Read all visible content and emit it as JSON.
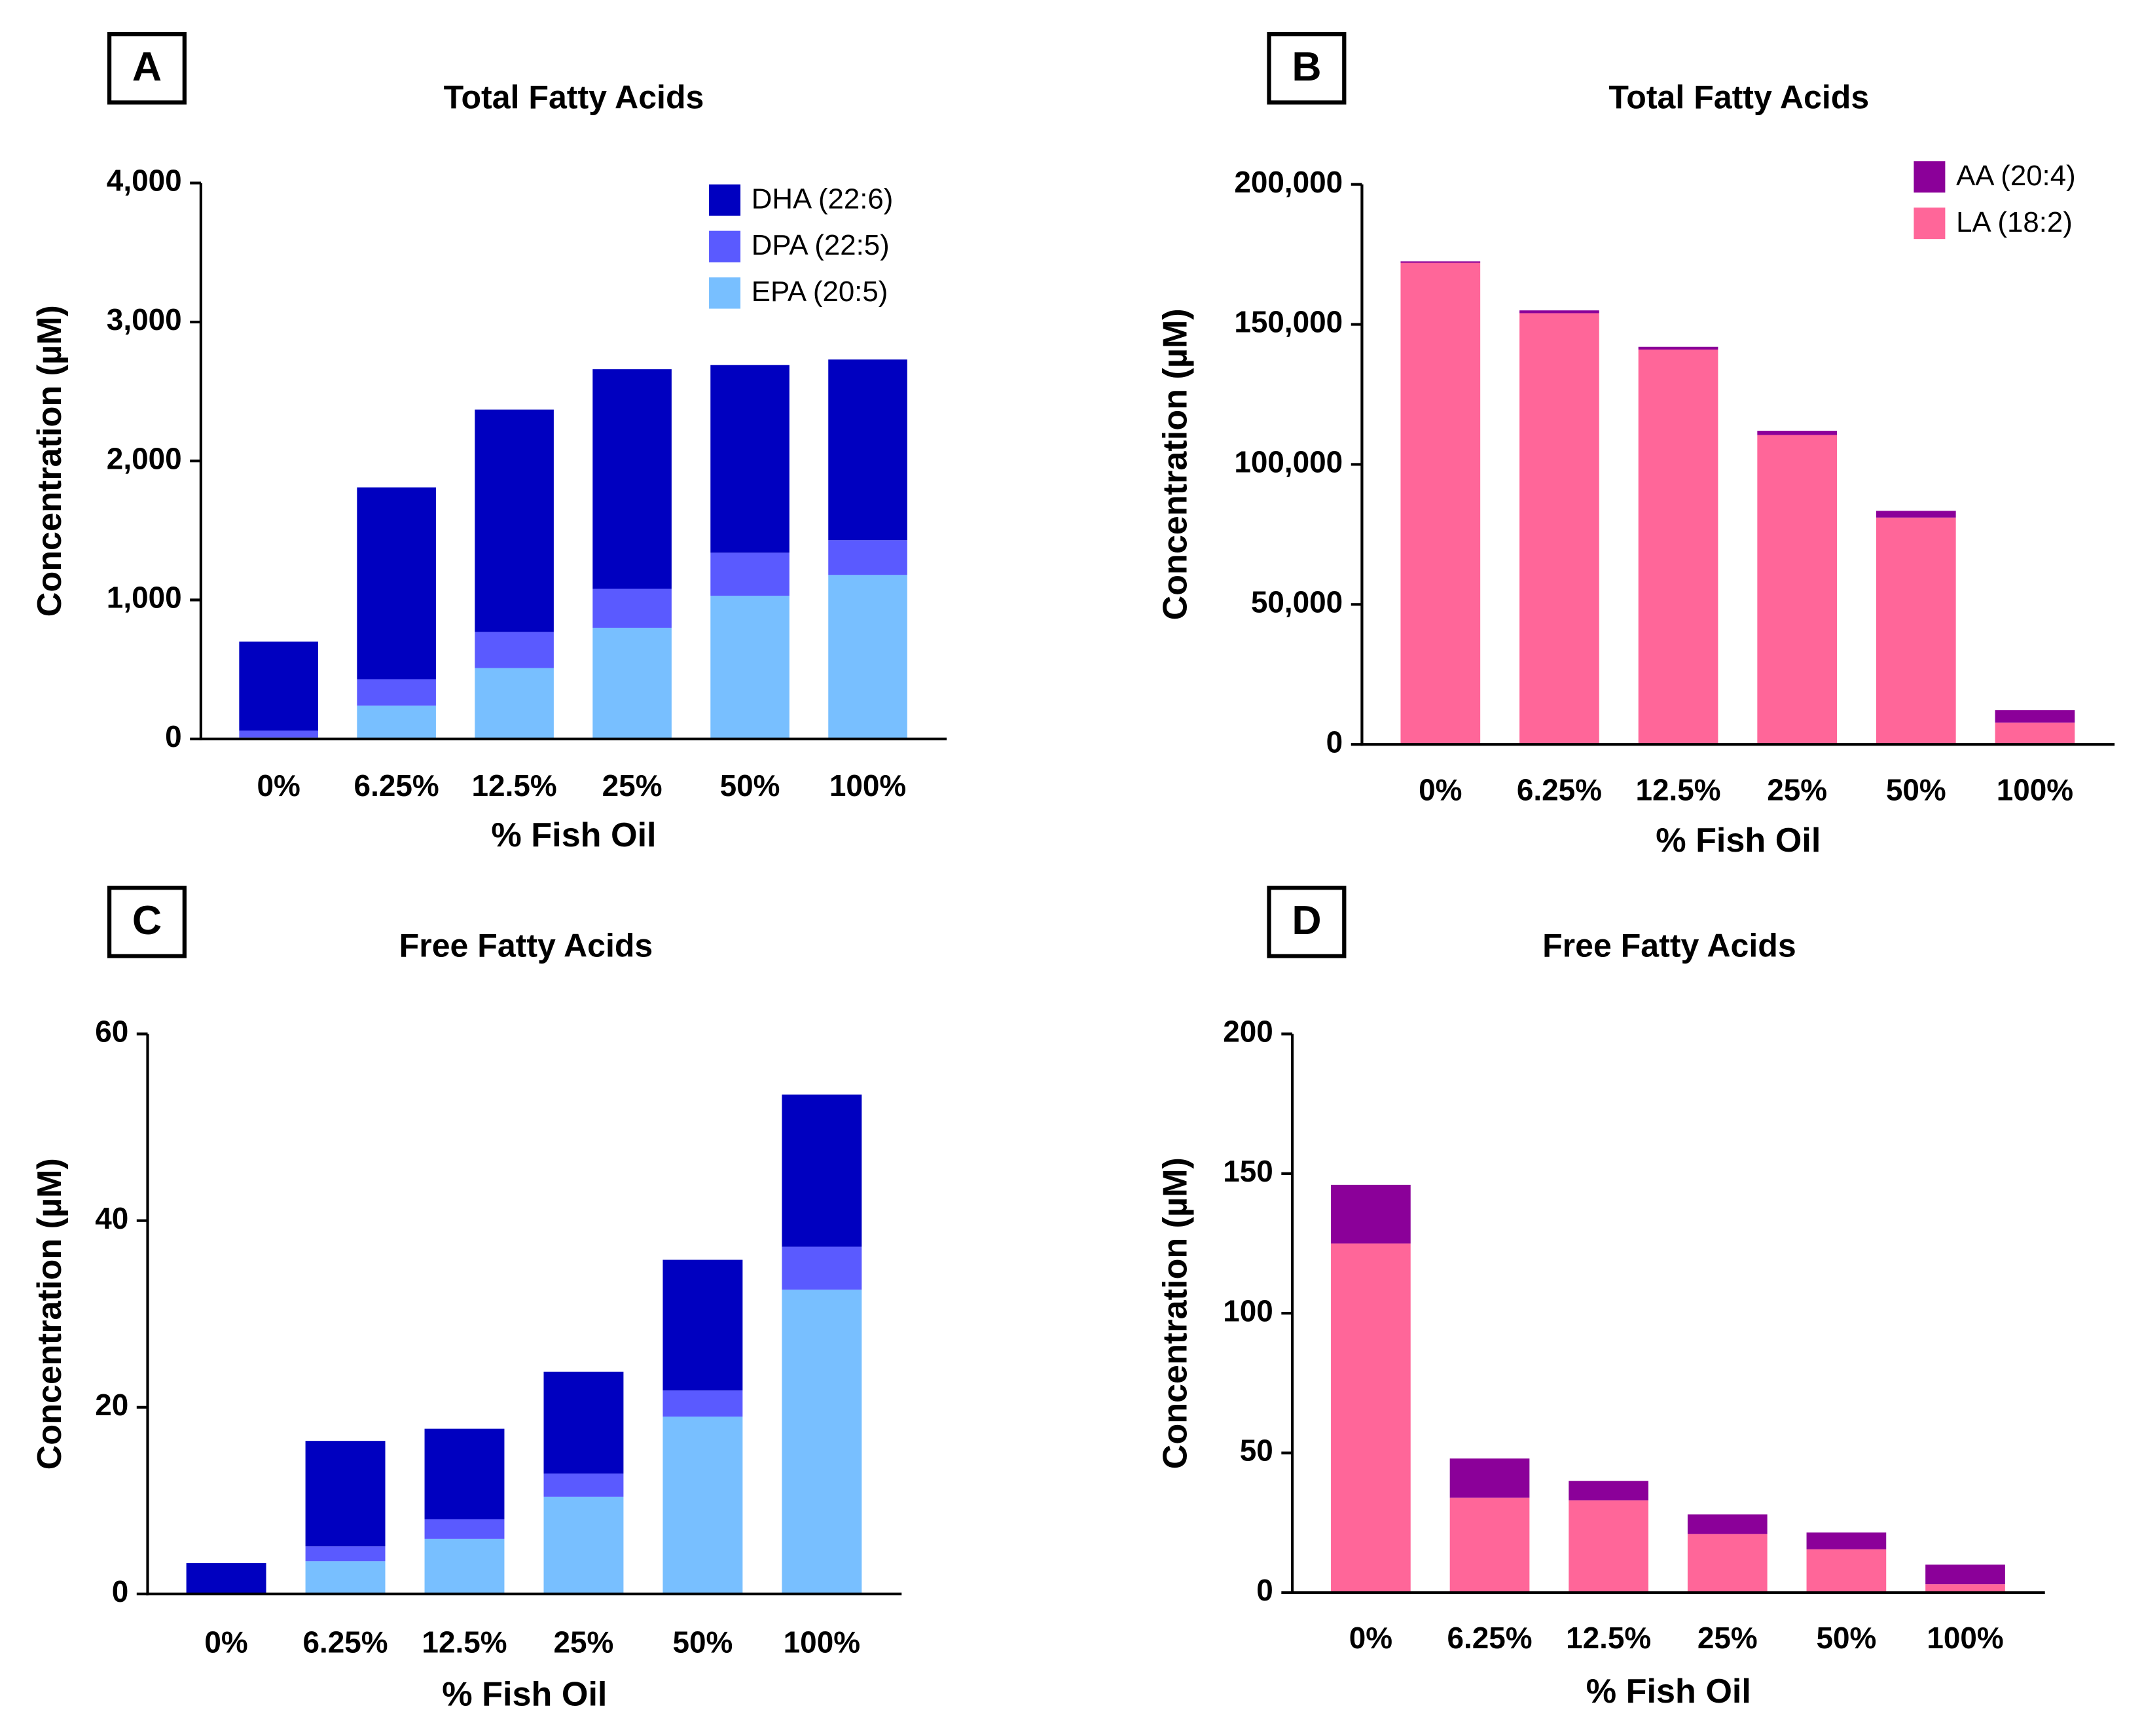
{
  "chart_data": [
    {
      "type": "bar",
      "panel_label": "A",
      "title": "Total Fatty Acids",
      "x_label": "% Fish Oil",
      "y_label": "Concentration (µM)",
      "categories": [
        "0%",
        "6.25%",
        "12.5%",
        "25%",
        "50%",
        "100%"
      ],
      "series": [
        {
          "name": "EPA (20:5)",
          "color": "#78bfff",
          "values": [
            10,
            240,
            510,
            800,
            1030,
            1180
          ]
        },
        {
          "name": "DPA (22:5)",
          "color": "#5a5aff",
          "values": [
            50,
            190,
            260,
            280,
            310,
            250
          ]
        },
        {
          "name": "DHA (22:6)",
          "color": "#0000c0",
          "values": [
            640,
            1380,
            1600,
            1580,
            1350,
            1300
          ]
        }
      ],
      "stacked": true,
      "ylim": [
        0,
        4000
      ],
      "yticks": [
        0,
        {
          "value": 1000,
          "label": "1,000"
        },
        {
          "value": 2000,
          "label": "2,000"
        },
        {
          "value": 3000,
          "label": "3,000"
        },
        {
          "value": 4000,
          "label": "4,000"
        }
      ],
      "legend": "upper right"
    },
    {
      "type": "bar",
      "panel_label": "B",
      "title": "Total Fatty Acids",
      "x_label": "% Fish Oil",
      "y_label": "Concentration (µM)",
      "categories": [
        "0%",
        "6.25%",
        "12.5%",
        "25%",
        "50%",
        "100%"
      ],
      "series": [
        {
          "name": "LA (18:2)",
          "color": "#ff6699",
          "values": [
            172000,
            154000,
            141000,
            110500,
            81000,
            7800
          ]
        },
        {
          "name": "AA (20:4)",
          "color": "#8b0099",
          "values": [
            500,
            1000,
            1000,
            1500,
            2400,
            4400
          ]
        }
      ],
      "stacked": true,
      "ylim": [
        0,
        200000
      ],
      "yticks": [
        0,
        {
          "value": 50000,
          "label": "50,000"
        },
        {
          "value": 100000,
          "label": "100,000"
        },
        {
          "value": 150000,
          "label": "150,000"
        },
        {
          "value": 200000,
          "label": "200,000"
        }
      ],
      "legend": "upper right"
    },
    {
      "type": "bar",
      "panel_label": "C",
      "title": "Free Fatty Acids",
      "x_label": "% Fish Oil",
      "y_label": "Concentration (µM)",
      "categories": [
        "0%",
        "6.25%",
        "12.5%",
        "25%",
        "50%",
        "100%"
      ],
      "series": [
        {
          "name": "EPA (20:5)",
          "color": "#78bfff",
          "values": [
            0,
            3.5,
            5.9,
            10.4,
            19.0,
            32.6
          ]
        },
        {
          "name": "DPA (22:5)",
          "color": "#5a5aff",
          "values": [
            0,
            1.6,
            2.1,
            2.5,
            2.8,
            4.6
          ]
        },
        {
          "name": "DHA (22:6)",
          "color": "#0000c0",
          "values": [
            3.3,
            11.3,
            9.7,
            10.9,
            14.0,
            16.3
          ]
        }
      ],
      "stacked": true,
      "ylim": [
        0,
        60
      ],
      "yticks": [
        0,
        20,
        40,
        60
      ],
      "legend": false
    },
    {
      "type": "bar",
      "panel_label": "D",
      "title": "Free Fatty Acids",
      "x_label": "% Fish Oil",
      "y_label": "Concentration (µM)",
      "categories": [
        "0%",
        "6.25%",
        "12.5%",
        "25%",
        "50%",
        "100%"
      ],
      "series": [
        {
          "name": "LA (18:2)",
          "color": "#ff6699",
          "values": [
            125,
            34,
            33,
            21,
            15.5,
            3
          ]
        },
        {
          "name": "AA (20:4)",
          "color": "#8b0099",
          "values": [
            21,
            14,
            7,
            7,
            6,
            7
          ]
        }
      ],
      "stacked": true,
      "ylim": [
        0,
        200
      ],
      "yticks": [
        0,
        50,
        100,
        150,
        200
      ],
      "legend": false
    }
  ]
}
